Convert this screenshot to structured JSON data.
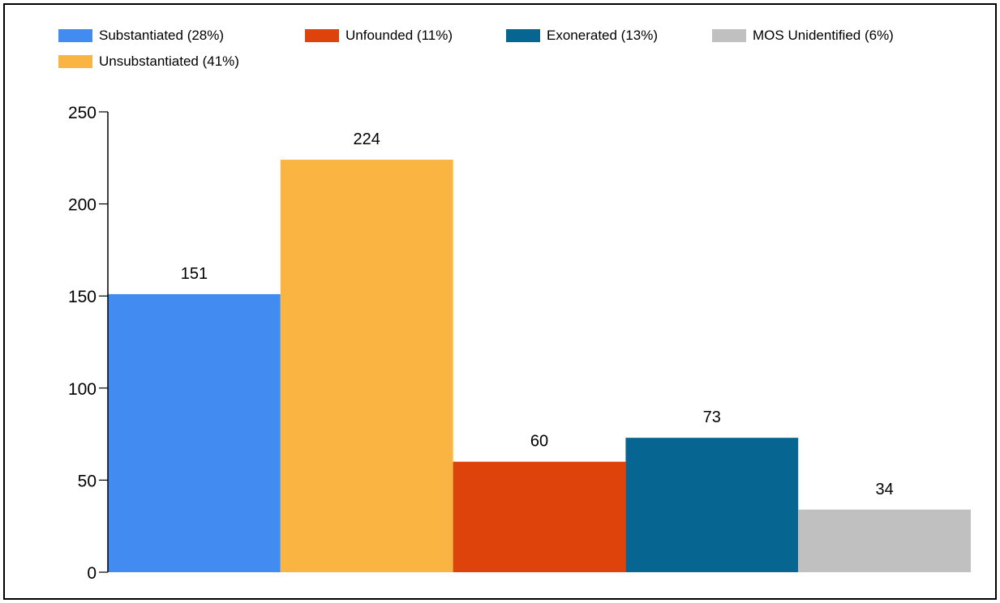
{
  "chart_data": {
    "type": "bar",
    "title": "",
    "xlabel": "",
    "ylabel": "",
    "ylim": [
      0,
      250
    ],
    "yticks": [
      0,
      50,
      100,
      150,
      200,
      250
    ],
    "grid": false,
    "legend_position": "top",
    "categories": [
      "Substantiated",
      "Unsubstantiated",
      "Unfounded",
      "Exonerated",
      "MOS Unidentified"
    ],
    "values": [
      151,
      224,
      60,
      73,
      34
    ],
    "colors": [
      "#418bf1",
      "#fab442",
      "#df430c",
      "#066691",
      "#c0c0c0"
    ],
    "legend": [
      {
        "label": "Substantiated (28%)",
        "color": "#418bf1"
      },
      {
        "label": "Unfounded (11%)",
        "color": "#df430c"
      },
      {
        "label": "Exonerated (13%)",
        "color": "#066691"
      },
      {
        "label": "MOS Unidentified (6%)",
        "color": "#c0c0c0"
      },
      {
        "label": "Unsubstantiated (41%)",
        "color": "#fab442"
      }
    ]
  }
}
